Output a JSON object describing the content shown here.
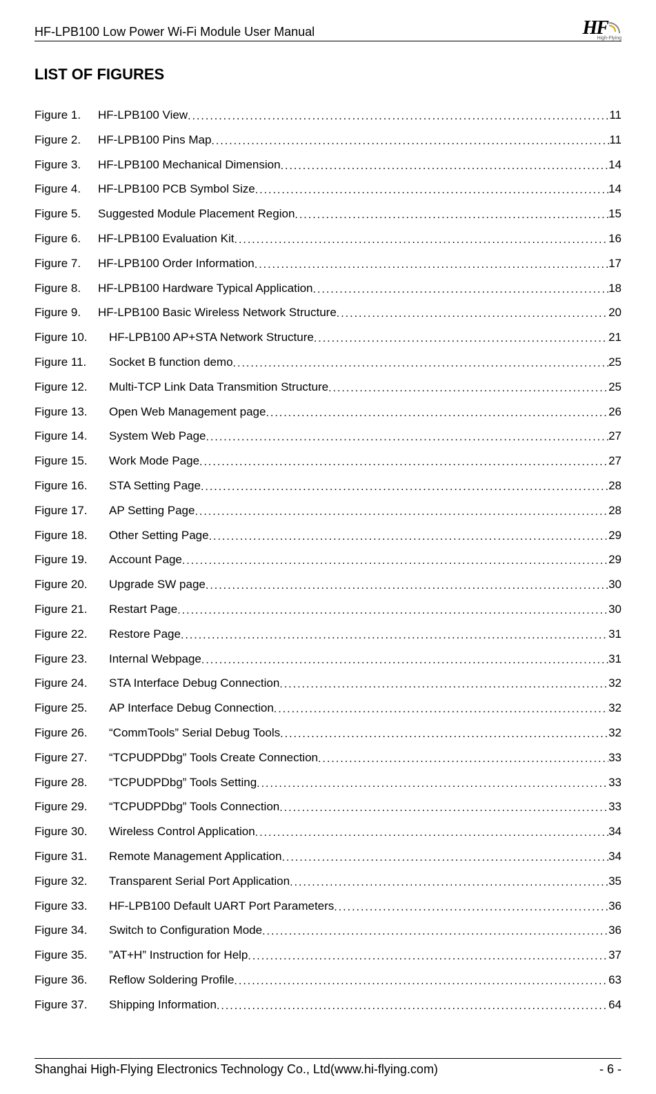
{
  "header": {
    "title": "HF-LPB100 Low Power Wi-Fi Module User Manual",
    "logo_text": "HF",
    "logo_sub": "High-Flying"
  },
  "section_title": "LIST OF FIGURES",
  "figures": [
    {
      "num": "Figure 1.",
      "title": "HF-LPB100 View",
      "page": "11",
      "wide": false
    },
    {
      "num": "Figure 2.",
      "title": "HF-LPB100 Pins Map",
      "page": "11",
      "wide": false
    },
    {
      "num": "Figure 3.",
      "title": "HF-LPB100 Mechanical Dimension ",
      "page": "14",
      "wide": false
    },
    {
      "num": "Figure 4.",
      "title": "HF-LPB100 PCB Symbol Size ",
      "page": "14",
      "wide": false
    },
    {
      "num": "Figure 5.",
      "title": "Suggested Module Placement Region",
      "page": "15",
      "wide": false
    },
    {
      "num": "Figure 6.",
      "title": "HF-LPB100 Evaluation Kit",
      "page": "16",
      "wide": false
    },
    {
      "num": "Figure 7.",
      "title": "HF-LPB100 Order Information ",
      "page": "17",
      "wide": false
    },
    {
      "num": "Figure 8.",
      "title": "HF-LPB100 Hardware Typical Application",
      "page": "18",
      "wide": false
    },
    {
      "num": "Figure 9.",
      "title": "HF-LPB100 Basic Wireless Network Structure",
      "page": "20",
      "wide": false
    },
    {
      "num": "Figure 10.",
      "title": "HF-LPB100 AP+STA Network Structure ",
      "page": "21",
      "wide": true
    },
    {
      "num": "Figure 11.",
      "title": "Socket B function demo",
      "page": "25",
      "wide": true
    },
    {
      "num": "Figure 12.",
      "title": "Multi-TCP Link Data Transmition Structure ",
      "page": "25",
      "wide": true
    },
    {
      "num": "Figure 13.",
      "title": "Open Web Management page",
      "page": "26",
      "wide": true
    },
    {
      "num": "Figure 14.",
      "title": "System Web Page ",
      "page": "27",
      "wide": true
    },
    {
      "num": "Figure 15.",
      "title": "Work Mode Page ",
      "page": "27",
      "wide": true
    },
    {
      "num": "Figure 16.",
      "title": "STA Setting Page ",
      "page": "28",
      "wide": true
    },
    {
      "num": "Figure 17.",
      "title": "AP Setting Page ",
      "page": "28",
      "wide": true
    },
    {
      "num": "Figure 18.",
      "title": "Other Setting Page ",
      "page": "29",
      "wide": true
    },
    {
      "num": "Figure 19.",
      "title": "Account Page",
      "page": "29",
      "wide": true
    },
    {
      "num": "Figure 20.",
      "title": "Upgrade SW page ",
      "page": "30",
      "wide": true
    },
    {
      "num": "Figure 21.",
      "title": "Restart Page",
      "page": "30",
      "wide": true
    },
    {
      "num": "Figure 22.",
      "title": "Restore Page",
      "page": "31",
      "wide": true
    },
    {
      "num": "Figure 23.",
      "title": "Internal Webpage ",
      "page": "31",
      "wide": true
    },
    {
      "num": "Figure 24.",
      "title": "STA Interface Debug Connection",
      "page": "32",
      "wide": true
    },
    {
      "num": "Figure 25.",
      "title": "AP Interface Debug Connection ",
      "page": "32",
      "wide": true
    },
    {
      "num": "Figure 26.",
      "title": "“CommTools” Serial Debug Tools ",
      "page": "32",
      "wide": true
    },
    {
      "num": "Figure 27.",
      "title": "“TCPUDPDbg” Tools Create Connection ",
      "page": "33",
      "wide": true
    },
    {
      "num": "Figure 28.",
      "title": "“TCPUDPDbg” Tools Setting",
      "page": "33",
      "wide": true
    },
    {
      "num": "Figure 29.",
      "title": "“TCPUDPDbg” Tools Connection",
      "page": "33",
      "wide": true
    },
    {
      "num": "Figure 30.",
      "title": "Wireless Control Application",
      "page": "34",
      "wide": true
    },
    {
      "num": "Figure 31.",
      "title": "Remote Management Application",
      "page": "34",
      "wide": true
    },
    {
      "num": "Figure 32.",
      "title": "Transparent Serial Port Application",
      "page": "35",
      "wide": true
    },
    {
      "num": "Figure 33.",
      "title": "HF-LPB100 Default UART Port Parameters ",
      "page": "36",
      "wide": true
    },
    {
      "num": "Figure 34.",
      "title": "Switch to Configuration Mode",
      "page": "36",
      "wide": true
    },
    {
      "num": "Figure 35.",
      "title": "”AT+H” Instruction for Help",
      "page": "37",
      "wide": true
    },
    {
      "num": "Figure 36.",
      "title": "Reflow Soldering Profile ",
      "page": "63",
      "wide": true
    },
    {
      "num": "Figure 37.",
      "title": "Shipping Information",
      "page": "64",
      "wide": true
    }
  ],
  "footer": {
    "company": "Shanghai High-Flying Electronics Technology Co., Ltd(www.hi-flying.com)",
    "page_number": "- 6 -"
  }
}
